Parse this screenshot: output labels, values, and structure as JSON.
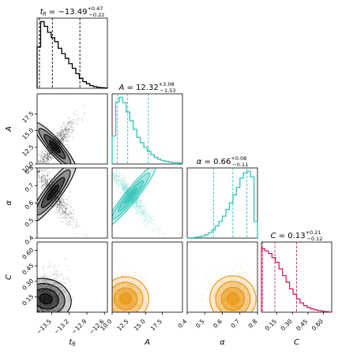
{
  "chart_data": {
    "type": "corner",
    "parameters": [
      {
        "key": "t",
        "label_main": "t",
        "label_sub": "fl",
        "title": {
          "prefix": "t",
          "sub": "fl",
          "eq": " = −13.49",
          "plus": "+0.47",
          "minus": "−0.22"
        },
        "range": [
          -13.75,
          -12.55
        ],
        "ticks": [
          -13.5,
          -13.2,
          -12.9,
          -12.6
        ],
        "tick_labels": [
          "−13.5",
          "−13.2",
          "−12.9",
          "−12.6"
        ],
        "median": -13.49,
        "lo": -13.71,
        "hi": -13.02,
        "color": "#000000",
        "hist": [
          0.62,
          1.0,
          0.93,
          0.84,
          0.76,
          0.7,
          0.6,
          0.52,
          0.45,
          0.37,
          0.3,
          0.22,
          0.15,
          0.1,
          0.07,
          0.04,
          0.025,
          0.015,
          0.01,
          0.005
        ]
      },
      {
        "key": "A",
        "label_main": "A",
        "label_sub": "",
        "title": {
          "prefix": "A",
          "sub": "",
          "eq": " = 12.32",
          "plus": "+3.08",
          "minus": "−1.53"
        },
        "range": [
          10.0,
          20.5
        ],
        "ticks": [
          10.0,
          12.5,
          15.0,
          17.5
        ],
        "tick_labels": [
          "10.0",
          "12.5",
          "15.0",
          "17.5"
        ],
        "median": 12.32,
        "lo": 10.79,
        "hi": 15.4,
        "color": "#2ec4b6",
        "hist": [
          0.42,
          0.93,
          1.0,
          0.92,
          0.78,
          0.65,
          0.52,
          0.4,
          0.32,
          0.25,
          0.19,
          0.14,
          0.1,
          0.07,
          0.05,
          0.04,
          0.03,
          0.02,
          0.02,
          0.015
        ]
      },
      {
        "key": "alpha",
        "label_main": "α",
        "label_sub": "",
        "title": {
          "prefix": "α",
          "sub": "",
          "eq": " = 0.66",
          "plus": "+0.08",
          "minus": "−0.11"
        },
        "range": [
          0.4,
          0.8
        ],
        "ticks": [
          0.4,
          0.5,
          0.6,
          0.7,
          0.8
        ],
        "tick_labels": [
          "0.4",
          "0.5",
          "0.6",
          "0.7",
          "0.8"
        ],
        "median": 0.66,
        "lo": 0.55,
        "hi": 0.74,
        "color": "#2ec4b6",
        "hist": [
          0.005,
          0.005,
          0.01,
          0.02,
          0.03,
          0.05,
          0.08,
          0.12,
          0.18,
          0.25,
          0.33,
          0.43,
          0.53,
          0.65,
          0.76,
          0.9,
          0.98,
          1.0,
          0.92,
          0.25
        ]
      },
      {
        "key": "C",
        "label_main": "C",
        "label_sub": "",
        "title": {
          "prefix": "C",
          "sub": "",
          "eq": " = 0.13",
          "plus": "+0.21",
          "minus": "−0.12"
        },
        "range": [
          0.0,
          0.68
        ],
        "ticks": [
          0.15,
          0.3,
          0.45,
          0.6
        ],
        "tick_labels": [
          "0.15",
          "0.30",
          "0.45",
          "0.60"
        ],
        "median": 0.13,
        "lo": 0.01,
        "hi": 0.34,
        "color": "#d81e5b",
        "hist": [
          0.95,
          0.92,
          0.88,
          0.82,
          0.75,
          0.65,
          0.55,
          0.45,
          0.35,
          0.27,
          0.2,
          0.14,
          0.1,
          0.07,
          0.05,
          0.035,
          0.025,
          0.015,
          0.01,
          0.005
        ]
      }
    ],
    "pairs": [
      {
        "row": 1,
        "col": 0,
        "color": "#000000",
        "mean": [
          -13.45,
          12.6
        ],
        "sd": [
          0.17,
          1.9
        ],
        "rho": 0.9
      },
      {
        "row": 2,
        "col": 0,
        "color": "#000000",
        "mean": [
          -13.48,
          0.66
        ],
        "sd": [
          0.18,
          0.09
        ],
        "rho": -0.9
      },
      {
        "row": 2,
        "col": 1,
        "color": "#2ec4b6",
        "mean": [
          12.8,
          0.64
        ],
        "sd": [
          1.8,
          0.09
        ],
        "rho": -0.95
      },
      {
        "row": 3,
        "col": 0,
        "color": "#000000",
        "mean": [
          -13.6,
          0.13
        ],
        "sd": [
          0.18,
          0.12
        ],
        "rho": 0.25
      },
      {
        "row": 3,
        "col": 1,
        "color": "#e8930a",
        "mean": [
          12.0,
          0.13
        ],
        "sd": [
          1.5,
          0.12
        ],
        "rho": 0.05
      },
      {
        "row": 3,
        "col": 2,
        "color": "#e8930a",
        "mean": [
          0.66,
          0.13
        ],
        "sd": [
          0.06,
          0.12
        ],
        "rho": 0.0
      }
    ]
  }
}
